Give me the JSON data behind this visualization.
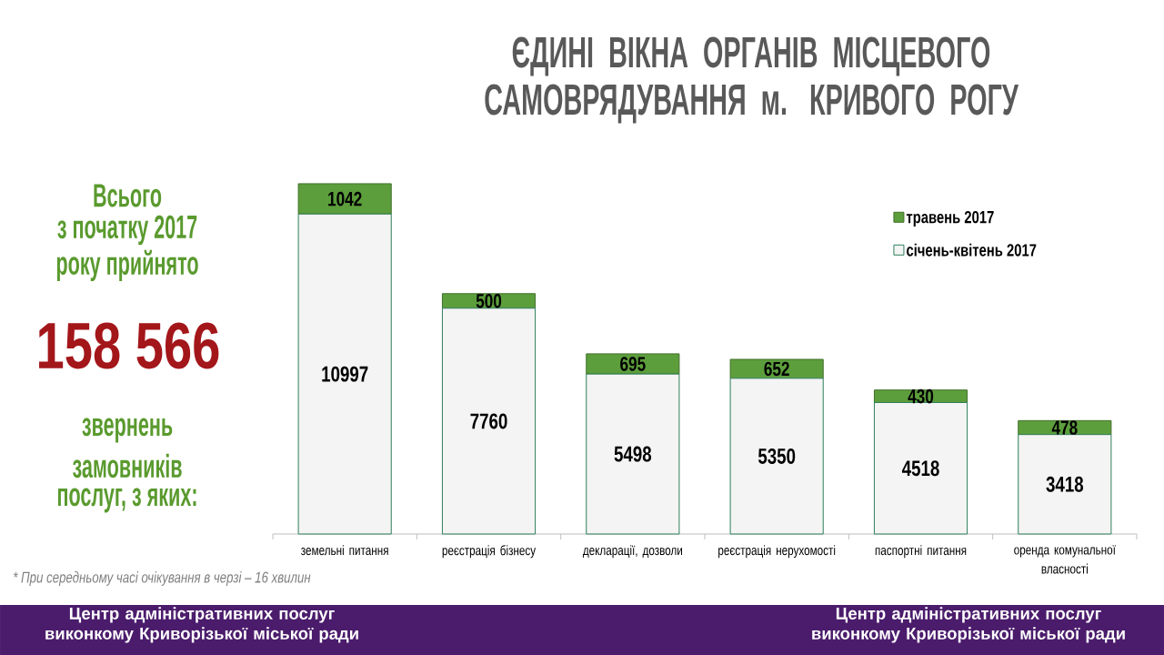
{
  "chart_data": {
    "type": "bar",
    "title": "ЄДИНІ ВІКНА ОРГАНІВ МІСЦЕВОГО САМОВРЯДУВАННЯ м. КРИВОГО РОГУ",
    "categories": [
      "земельні питання",
      "реєстрація бізнесу",
      "декларації, дозволи",
      "реєстрація нерухомості",
      "паспортні питання",
      "оренда комунальної власності"
    ],
    "series": [
      {
        "name": "січень-квітень 2017",
        "color": "#f4f4f4",
        "values": [
          10997,
          7760,
          5498,
          5350,
          4518,
          3418
        ]
      },
      {
        "name": "травень 2017",
        "color": "#5c9e3c",
        "values": [
          1042,
          500,
          695,
          652,
          430,
          478
        ]
      }
    ],
    "stacked": true,
    "data_labels": true,
    "legend": "top right",
    "annotations": [
      "Всього",
      "з початку 2017",
      "року прийнято",
      "158 566",
      "звернень",
      "замовників",
      "послуг, з яких:",
      "* При середньому часі очікування в черзі – 16 хвилин",
      "Центр адміністративних послуг виконкому Криворізької міської ради",
      "Центр адміністративних послуг виконкому Криворізької міської ради"
    ]
  }
}
